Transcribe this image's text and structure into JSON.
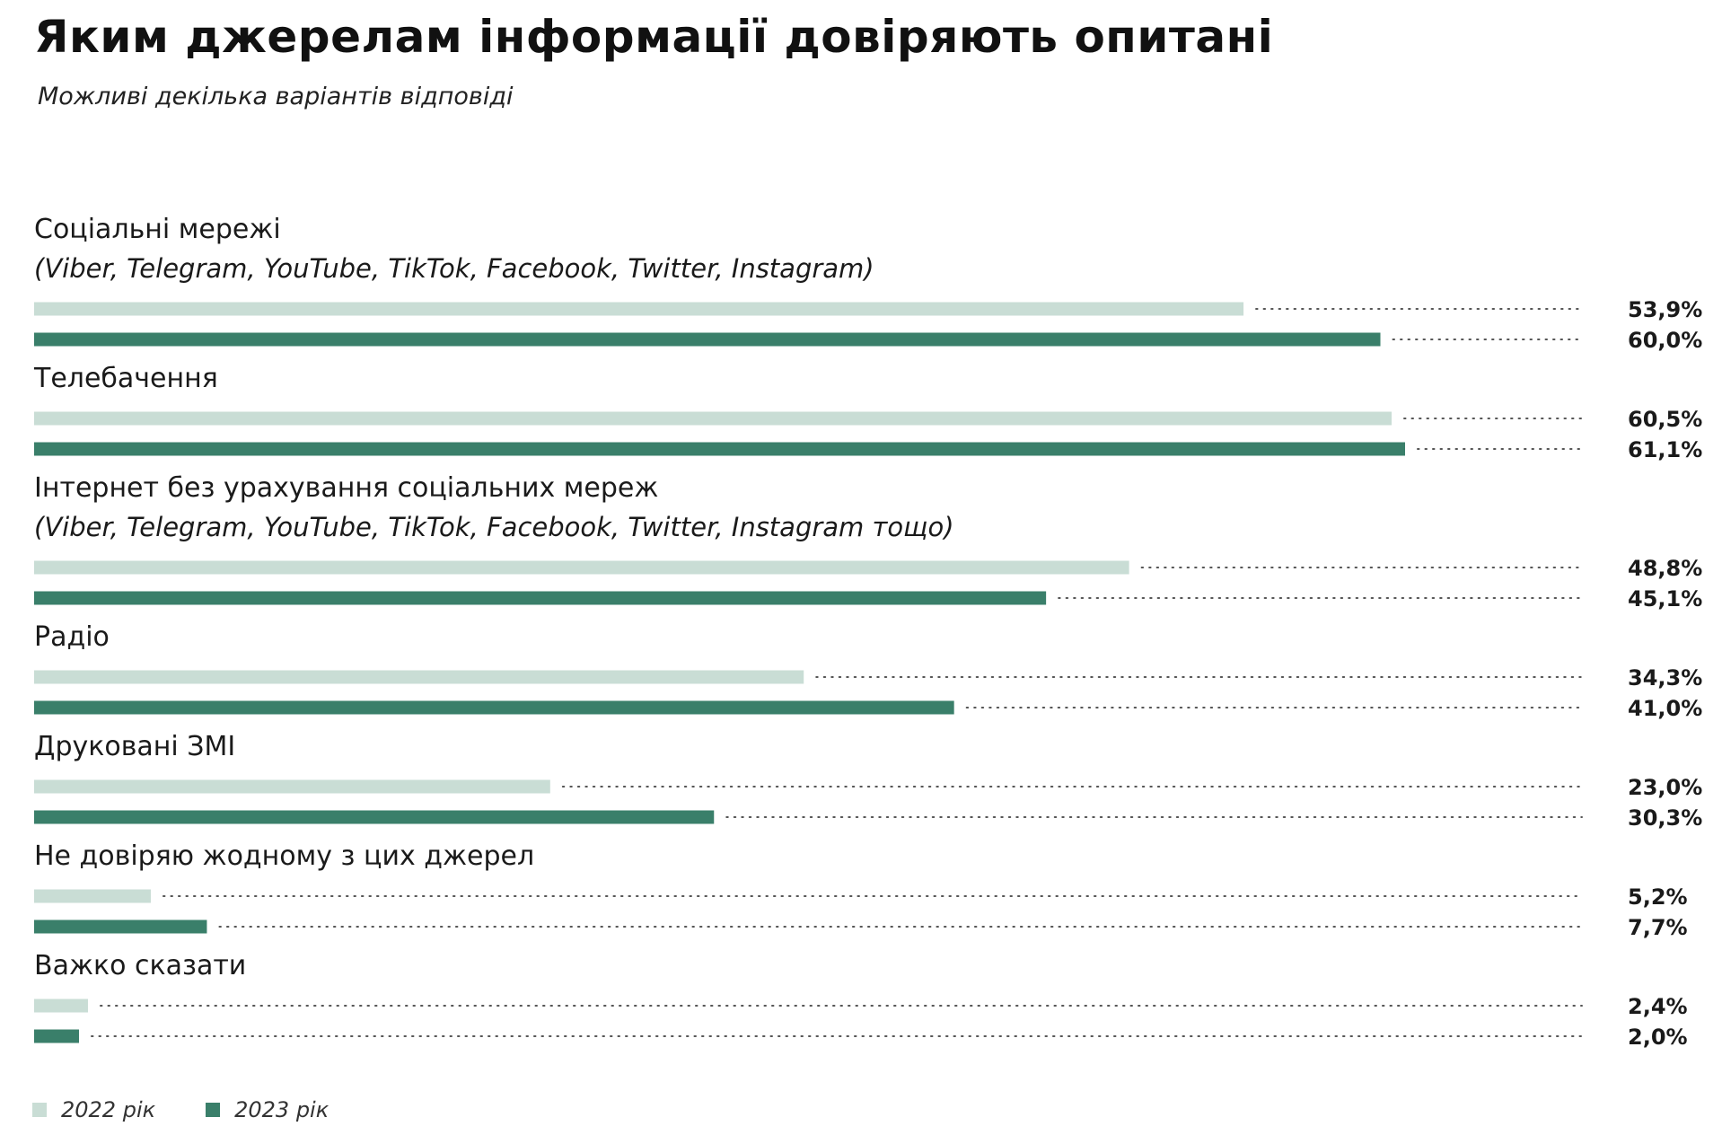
{
  "header": {
    "title": "Яким джерелам інформації довіряють опитані",
    "subtitle": "Можливі декілька варіантів відповіді"
  },
  "colors": {
    "series_2022": "#c9ddd5",
    "series_2023": "#3a7f6a",
    "dots": "#555555"
  },
  "chart_data": {
    "type": "bar",
    "orientation": "horizontal",
    "xlim": [
      0,
      61.1
    ],
    "grid": false,
    "legend_placement": "bottom-left",
    "categories": [
      "Соціальні мережі",
      "Телебачення",
      "Інтернет без урахування соціальних мереж",
      "Радіо",
      "Друковані ЗМІ",
      "Не довіряю жодному з цих джерел",
      "Важко сказати"
    ],
    "category_notes": [
      "(Viber, Telegram, YouTube, TikTok, Facebook, Twitter, Instagram)",
      "",
      "(Viber, Telegram, YouTube, TikTok, Facebook, Twitter, Instagram тощо)",
      "",
      "",
      "",
      ""
    ],
    "series": [
      {
        "name": "2022 рік",
        "values": [
          53.9,
          60.5,
          48.8,
          34.3,
          23.0,
          5.2,
          2.4
        ],
        "labels": [
          "53,9%",
          "60,5%",
          "48,8%",
          "34,3%",
          "23,0%",
          "5,2%",
          "2,4%"
        ]
      },
      {
        "name": "2023 рік",
        "values": [
          60.0,
          61.1,
          45.1,
          41.0,
          30.3,
          7.7,
          2.0
        ],
        "labels": [
          "60,0%",
          "61,1%",
          "45,1%",
          "41,0%",
          "30,3%",
          "7,7%",
          "2,0%"
        ]
      }
    ]
  }
}
